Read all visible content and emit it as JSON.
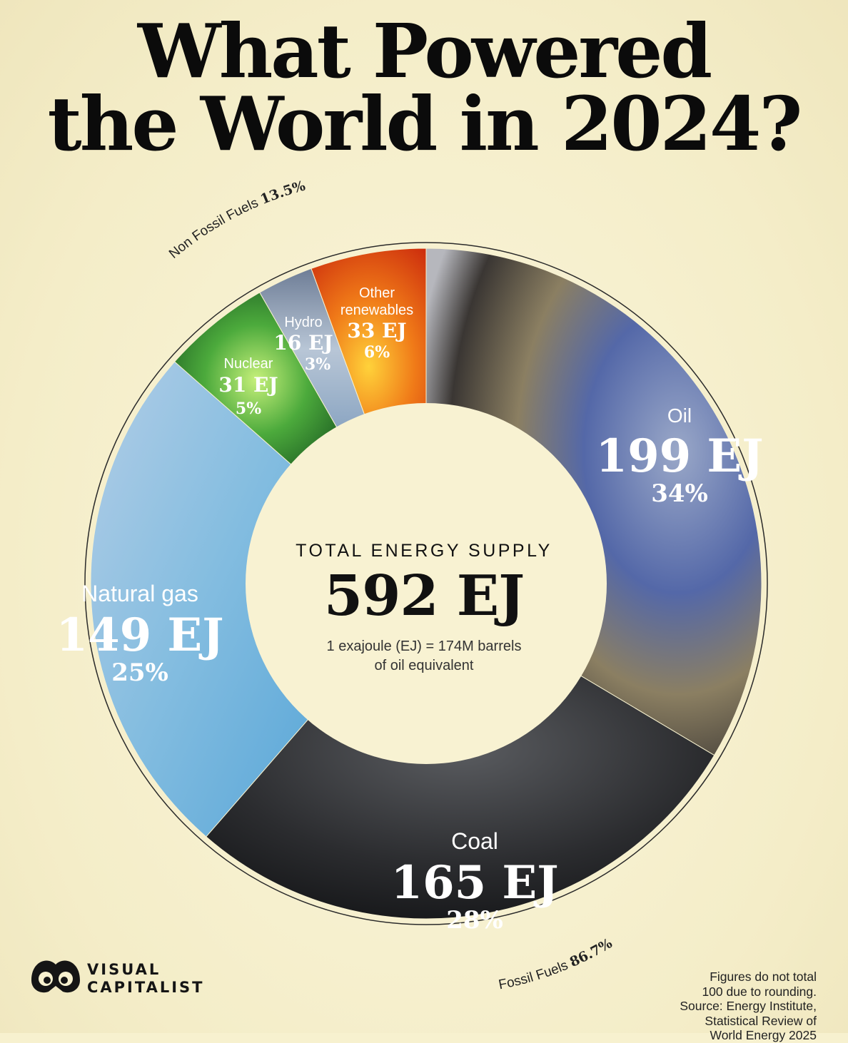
{
  "title": {
    "line1": "What Powered",
    "line2": "the World in 2024?"
  },
  "chart_data": {
    "type": "pie",
    "style": "donut",
    "title": "What Powered the World in 2024?",
    "unit": "EJ",
    "slices": [
      {
        "name": "Oil",
        "value": 199,
        "value_label": "199 EJ",
        "percent_label": "34%",
        "group": "Fossil Fuels",
        "color": "#5d6d9c"
      },
      {
        "name": "Coal",
        "value": 165,
        "value_label": "165 EJ",
        "percent_label": "28%",
        "group": "Fossil Fuels",
        "color": "#2e2f31"
      },
      {
        "name": "Natural gas",
        "value": 149,
        "value_label": "149 EJ",
        "percent_label": "25%",
        "group": "Fossil Fuels",
        "color": "#8fc5e3"
      },
      {
        "name": "Nuclear",
        "value": 31,
        "value_label": "31 EJ",
        "percent_label": "5%",
        "group": "Non Fossil Fuels",
        "color": "#3e9a3e"
      },
      {
        "name": "Hydro",
        "value": 16,
        "value_label": "16 EJ",
        "percent_label": "3%",
        "group": "Non Fossil Fuels",
        "color": "#8aa3bf"
      },
      {
        "name": "Other renewables",
        "label_lines": [
          "Other",
          "renewables"
        ],
        "value": 33,
        "value_label": "33 EJ",
        "percent_label": "6%",
        "group": "Non Fossil Fuels",
        "color": "#e8521a"
      }
    ],
    "groups": [
      {
        "name": "Fossil Fuels",
        "percent": "86.7%"
      },
      {
        "name": "Non Fossil Fuels",
        "percent": "13.5%"
      }
    ],
    "center": {
      "label": "TOTAL ENERGY SUPPLY",
      "value": "592 EJ",
      "note_line1": "1 exajoule (EJ) = 174M barrels",
      "note_line2": "of oil equivalent"
    }
  },
  "footnote": {
    "lines": [
      "Figures do not total",
      "100 due to rounding.",
      "Source: Energy Institute,",
      "Statistical Review of",
      "World Energy 2025"
    ]
  },
  "brand": {
    "icon": "visual-capitalist-logo-icon",
    "line1": "VISUAL",
    "line2": "CAPITALIST"
  },
  "colors": {
    "background": "#f7f1cf",
    "title": "#0b0b0b",
    "ring": "#2a2a2a",
    "inner_circle": "#f8f2d2"
  }
}
